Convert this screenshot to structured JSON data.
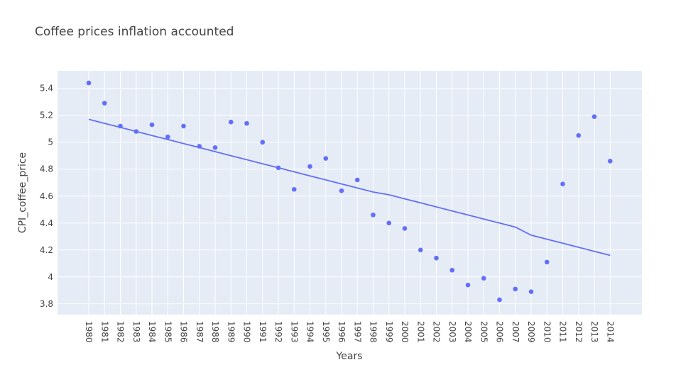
{
  "chart_data": {
    "type": "scatter",
    "title": "Coffee prices inflation accounted",
    "xlabel": "Years",
    "ylabel": "CPI_coffee_price",
    "categories": [
      "1980",
      "1981",
      "1982",
      "1983",
      "1984",
      "1985",
      "1986",
      "1987",
      "1988",
      "1989",
      "1990",
      "1991",
      "1992",
      "1993",
      "1994",
      "1995",
      "1996",
      "1997",
      "1998",
      "1999",
      "2000",
      "2001",
      "2002",
      "2003",
      "2004",
      "2005",
      "2006",
      "2007",
      "2009",
      "2010",
      "2011",
      "2012",
      "2013",
      "2014"
    ],
    "ylim": [
      3.72,
      5.53
    ],
    "yticks": [
      3.8,
      4,
      4.2,
      4.4,
      4.6,
      4.8,
      5,
      5.2,
      5.4
    ],
    "ytick_labels": [
      "3.8",
      "4",
      "4.2",
      "4.4",
      "4.6",
      "4.8",
      "5",
      "5.2",
      "5.4"
    ],
    "grid": true,
    "colors": {
      "marker": "#636efa",
      "plot_bg": "#e5ecf6",
      "grid": "#ffffff",
      "text": "#444444"
    },
    "series": [
      {
        "mode": "markers",
        "x": [
          1980,
          1981,
          1982,
          1983,
          1984,
          1985,
          1986,
          1987,
          1988,
          1989,
          1990,
          1991,
          1992,
          1993,
          1994,
          1995,
          1996,
          1997,
          1998,
          1999,
          2000,
          2001,
          2002,
          2003,
          2004,
          2005,
          2006,
          2007,
          2009,
          2010,
          2011,
          2012,
          2013,
          2014
        ],
        "values": [
          5.44,
          5.29,
          5.12,
          5.08,
          5.13,
          5.04,
          5.12,
          4.97,
          4.96,
          5.15,
          5.14,
          5.0,
          4.81,
          4.65,
          4.82,
          4.88,
          4.64,
          4.72,
          4.46,
          4.4,
          4.36,
          4.2,
          4.14,
          4.05,
          3.94,
          3.99,
          3.83,
          3.91,
          3.89,
          4.11,
          4.69,
          5.05,
          5.19,
          4.86
        ]
      },
      {
        "mode": "lines",
        "x": [
          1980,
          1981,
          1982,
          1983,
          1984,
          1985,
          1986,
          1987,
          1988,
          1989,
          1990,
          1991,
          1992,
          1993,
          1994,
          1995,
          1996,
          1997,
          1998,
          1999,
          2000,
          2001,
          2002,
          2003,
          2004,
          2005,
          2006,
          2007,
          2009,
          2010,
          2011,
          2012,
          2013,
          2014
        ],
        "values": [
          5.17,
          5.14,
          5.11,
          5.08,
          5.05,
          5.02,
          4.99,
          4.96,
          4.93,
          4.9,
          4.87,
          4.84,
          4.81,
          4.78,
          4.75,
          4.72,
          4.69,
          4.66,
          4.63,
          4.61,
          4.58,
          4.55,
          4.52,
          4.49,
          4.46,
          4.43,
          4.4,
          4.37,
          4.31,
          4.28,
          4.25,
          4.22,
          4.19,
          4.16
        ]
      }
    ]
  }
}
